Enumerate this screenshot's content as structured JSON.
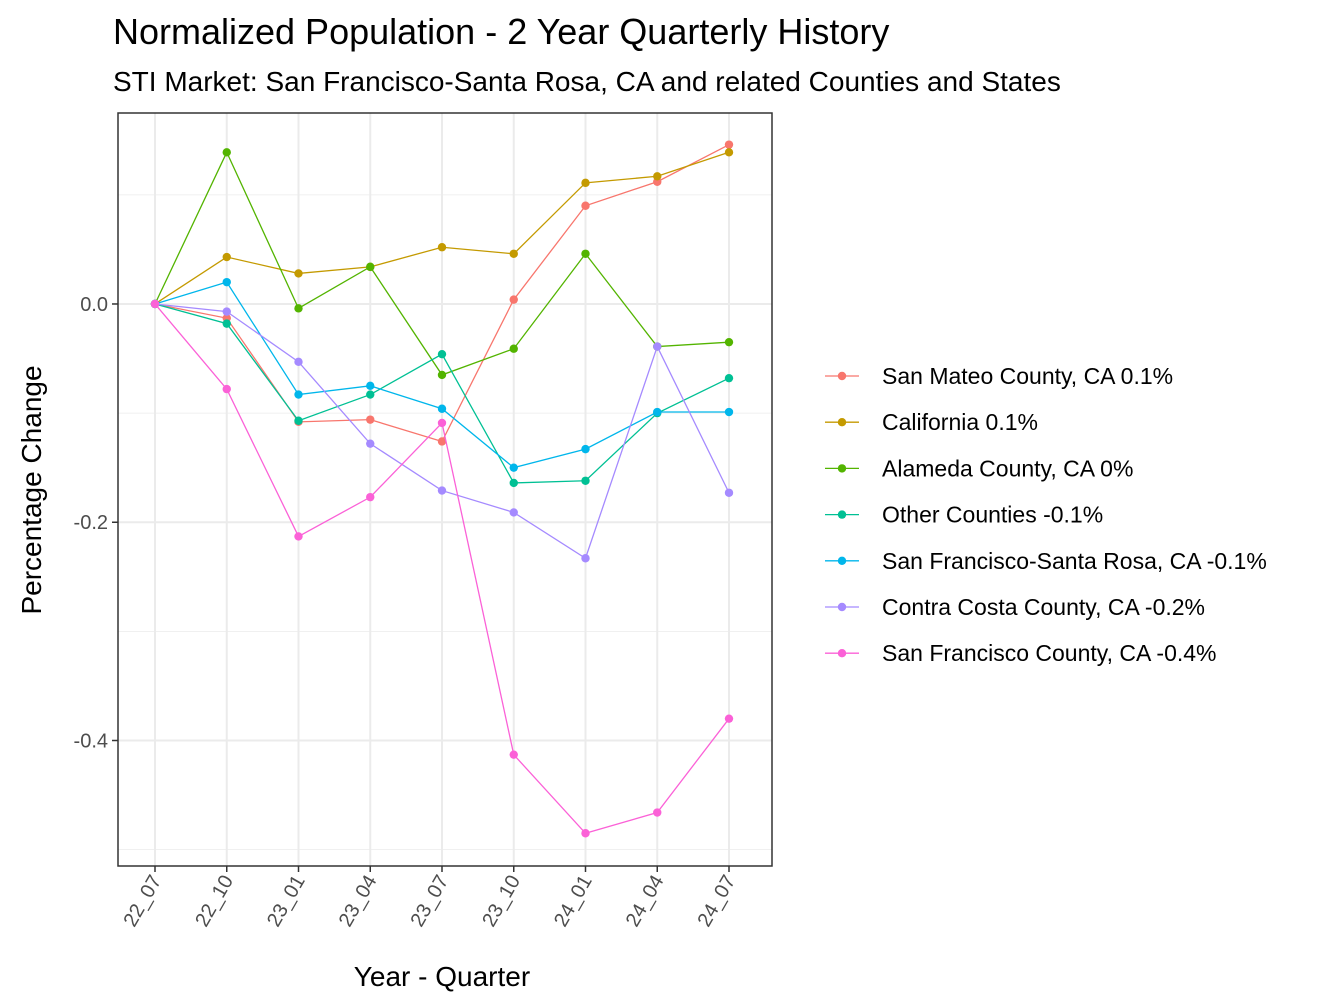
{
  "chart_data": {
    "type": "line",
    "title": "Normalized Population - 2 Year Quarterly History",
    "subtitle": "STI Market: San Francisco-Santa Rosa, CA and related Counties and States",
    "xlabel": "Year - Quarter",
    "ylabel": "Percentage Change",
    "categories": [
      "22_07",
      "22_10",
      "23_01",
      "23_04",
      "23_07",
      "23_10",
      "24_01",
      "24_04",
      "24_07"
    ],
    "yticks": [
      0.0,
      -0.2,
      -0.4
    ],
    "ytick_labels": [
      "0.0",
      "-0.2",
      "-0.4"
    ],
    "ylim": [
      -0.515,
      0.175
    ],
    "grid": true,
    "legend_position": "right",
    "series": [
      {
        "name": "San Mateo County, CA 0.1%",
        "color": "#F8766D",
        "values": [
          0.0,
          -0.013,
          -0.108,
          -0.106,
          -0.126,
          0.004,
          0.09,
          0.112,
          0.146
        ]
      },
      {
        "name": "California 0.1%",
        "color": "#C49A00",
        "values": [
          0.0,
          0.043,
          0.028,
          0.034,
          0.052,
          0.046,
          0.111,
          0.117,
          0.139
        ]
      },
      {
        "name": "Alameda County, CA 0%",
        "color": "#53B400",
        "values": [
          0.0,
          0.139,
          -0.004,
          0.034,
          -0.065,
          -0.041,
          0.046,
          -0.039,
          -0.035
        ]
      },
      {
        "name": "Other Counties -0.1%",
        "color": "#00C094",
        "values": [
          0.0,
          -0.018,
          -0.107,
          -0.083,
          -0.046,
          -0.164,
          -0.162,
          -0.1,
          -0.068
        ]
      },
      {
        "name": "San Francisco-Santa Rosa, CA -0.1%",
        "color": "#00B6EB",
        "values": [
          0.0,
          0.02,
          -0.083,
          -0.075,
          -0.096,
          -0.15,
          -0.133,
          -0.099,
          -0.099
        ]
      },
      {
        "name": "Contra Costa County, CA -0.2%",
        "color": "#A58AFF",
        "values": [
          0.0,
          -0.007,
          -0.053,
          -0.128,
          -0.171,
          -0.191,
          -0.233,
          -0.039,
          -0.173
        ]
      },
      {
        "name": "San Francisco County, CA -0.4%",
        "color": "#FB61D7",
        "values": [
          0.0,
          -0.078,
          -0.213,
          -0.177,
          -0.109,
          -0.413,
          -0.485,
          -0.466,
          -0.38
        ]
      }
    ]
  }
}
